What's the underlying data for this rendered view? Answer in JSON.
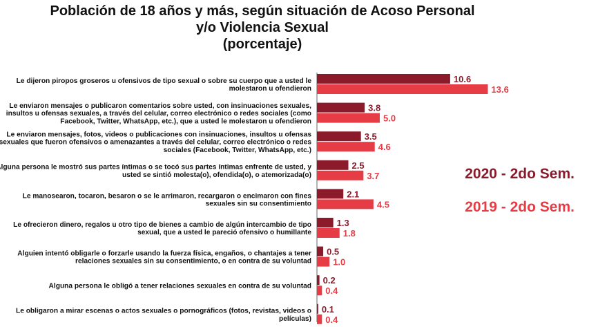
{
  "chart_data": {
    "type": "bar",
    "orientation": "horizontal",
    "title_lines": [
      "Población de 18 años y más, según situación de Acoso Personal",
      "y/o Violencia Sexual",
      "(porcentaje)"
    ],
    "categories": [
      [
        "Le dijeron piropos groseros u ofensivos de tipo sexual o sobre su cuerpo que a usted le",
        "molestaron u ofendieron"
      ],
      [
        "Le enviaron mensajes o publicaron comentarios sobre usted, con insinuaciones sexuales,",
        "insultos u ofensas sexuales, a través del celular, correo electrónico o redes sociales (como",
        "Facebook, Twitter, WhatsApp, etc.), que a usted le molestaron u ofendieron"
      ],
      [
        "Le enviaron mensajes, fotos, videos o publicaciones con insinuaciones, insultos u ofensas",
        "sexuales que fueron ofensivos o amenazantes a través del celular, correo electrónico o redes",
        "sociales (Facebook, Twitter, WhatsApp, etc.)"
      ],
      [
        "Alguna persona le mostró sus partes íntimas o se tocó sus partes íntimas enfrente de usted, y",
        "usted se sintió molesta(o), ofendida(o), o atemorizada(o)"
      ],
      [
        "Le manosearon, tocaron, besaron o se le arrimaron, recargaron o encimaron con fines",
        "sexuales sin su consentimiento"
      ],
      [
        "Le ofrecieron dinero, regalos u otro tipo de bienes a cambio de algún intercambio de tipo",
        "sexual, que a usted le pareció ofensivo o humillante"
      ],
      [
        "Alguien intentó obligarle o forzarle usando la fuerza física, engaños, o chantajes a tener",
        "relaciones sexuales sin su consentimiento, o en contra de su voluntad"
      ],
      [
        "Alguna persona le obligó a tener relaciones sexuales en contra de su voluntad"
      ],
      [
        "Le obligaron a mirar escenas o actos sexuales o pornográficos (fotos, revistas, videos o",
        "películas)"
      ]
    ],
    "series": [
      {
        "name": "2020 - 2do Sem.",
        "color": "#8b1a2b",
        "values": [
          10.6,
          3.8,
          3.5,
          2.5,
          2.1,
          1.3,
          0.5,
          0.2,
          0.1
        ],
        "labels": [
          "10.6",
          "3.8",
          "3.5",
          "2.5",
          "2.1",
          "1.3",
          "0.5",
          "0.2",
          "0.1"
        ]
      },
      {
        "name": "2019 - 2do Sem.",
        "color": "#e63c46",
        "values": [
          13.6,
          5.0,
          4.6,
          3.7,
          4.5,
          1.8,
          1.0,
          0.4,
          0.4
        ],
        "labels": [
          "13.6",
          "5.0",
          "4.6",
          "3.7",
          "4.5",
          "1.8",
          "1.0",
          "0.4",
          "0.4"
        ]
      }
    ],
    "grid": false,
    "legend_position": "right"
  }
}
